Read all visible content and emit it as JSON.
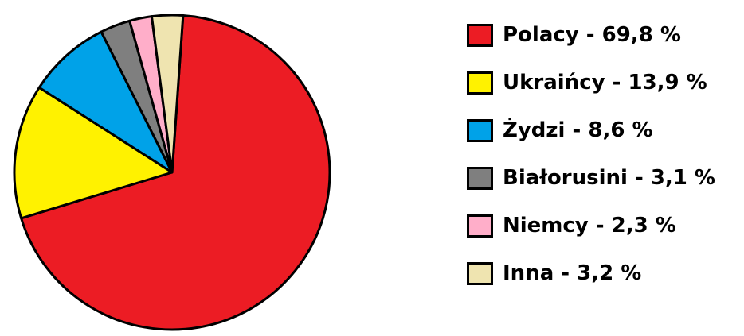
{
  "chart_data": {
    "type": "pie",
    "title": "",
    "legend_position": "right",
    "slices": [
      {
        "label": "Polacy - 69,8 %",
        "category": "Polacy",
        "value": 69.8,
        "color": "#ec1c24"
      },
      {
        "label": "Ukraińcy - 13,9 %",
        "category": "Ukraińcy",
        "value": 13.9,
        "color": "#fff200"
      },
      {
        "label": "Żydzi - 8,6 %",
        "category": "Żydzi",
        "value": 8.6,
        "color": "#00a2e8"
      },
      {
        "label": "Białorusini - 3,1 %",
        "category": "Białorusini",
        "value": 3.1,
        "color": "#7f7f7f"
      },
      {
        "label": "Niemcy - 2,3 %",
        "category": "Niemcy",
        "value": 2.3,
        "color": "#ffaec9"
      },
      {
        "label": "Inna - 3,2 %",
        "category": "Inna",
        "value": 3.2,
        "color": "#efe4b0"
      }
    ]
  }
}
